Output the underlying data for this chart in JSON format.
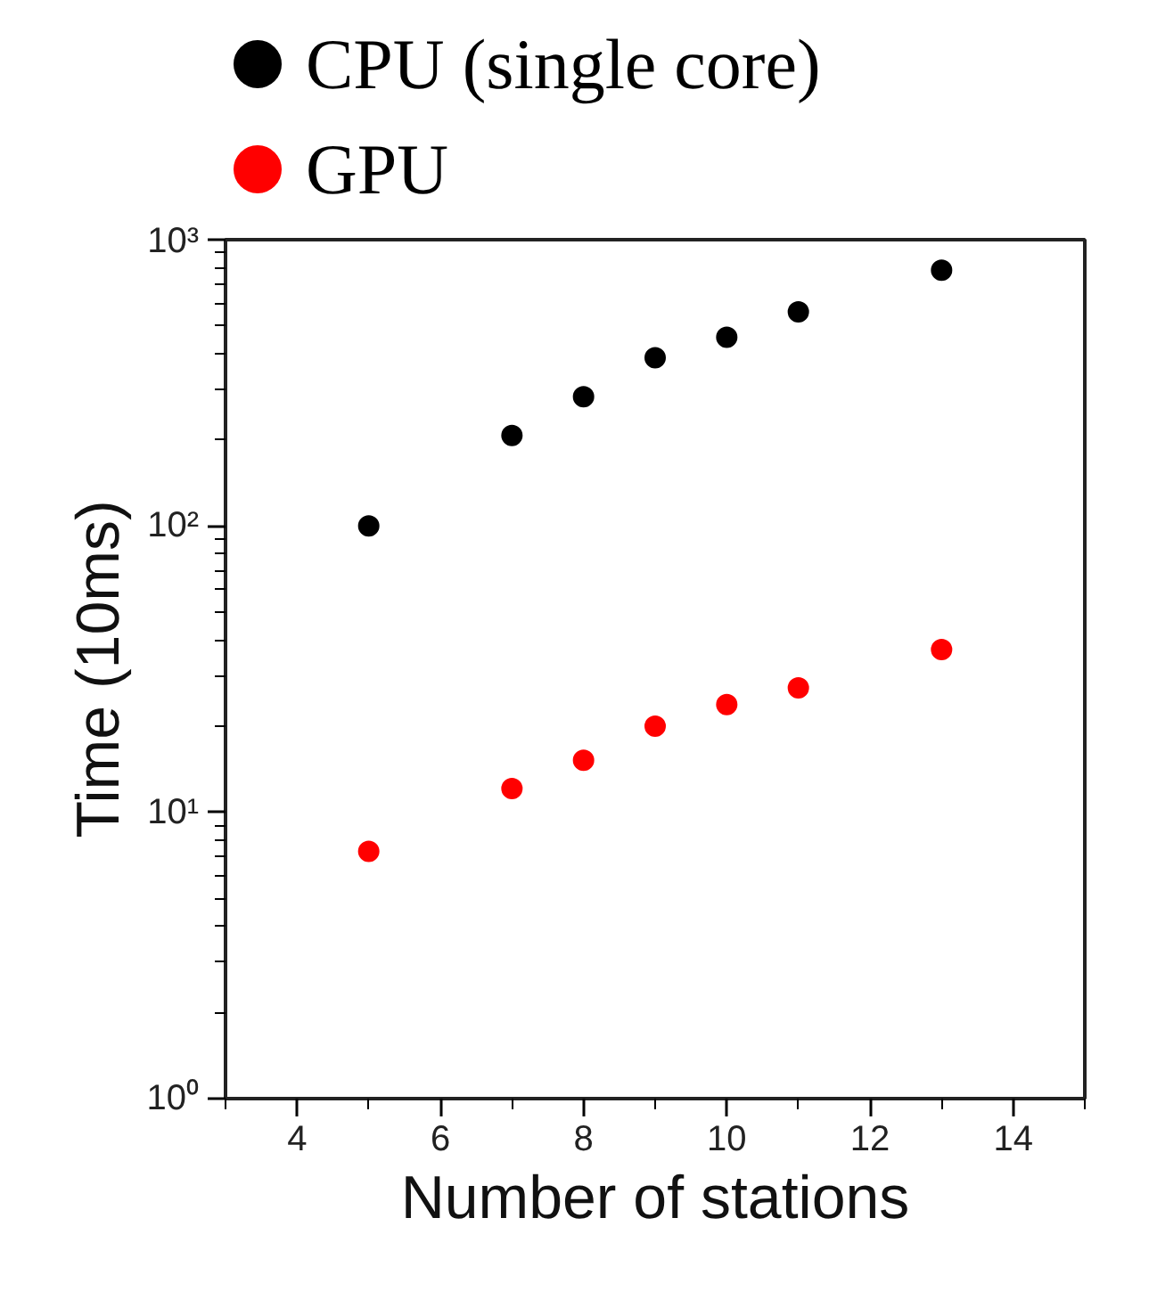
{
  "chart_data": {
    "type": "scatter",
    "xlabel": "Number of stations",
    "ylabel": "Time (10ms)",
    "x": [
      5,
      7,
      8,
      9,
      10,
      11,
      13
    ],
    "series": [
      {
        "name": "CPU (single core)",
        "color": "#000000",
        "values": [
          100,
          207,
          283,
          387,
          456,
          560,
          782
        ]
      },
      {
        "name": "GPU",
        "color": "#ff0000",
        "values": [
          7.3,
          12.1,
          15.2,
          20,
          23.8,
          27.2,
          37
        ]
      }
    ],
    "log": "y",
    "xlim": [
      3,
      15
    ],
    "ylim": [
      1,
      1000
    ],
    "xticks": [
      4,
      6,
      8,
      10,
      12,
      14
    ],
    "yticks": [
      {
        "value": 1,
        "label": "10⁰"
      },
      {
        "value": 10,
        "label": "10¹"
      },
      {
        "value": 100,
        "label": "10²"
      },
      {
        "value": 1000,
        "label": "10³"
      }
    ],
    "grid": false,
    "legend": "top",
    "marker": "circle"
  }
}
